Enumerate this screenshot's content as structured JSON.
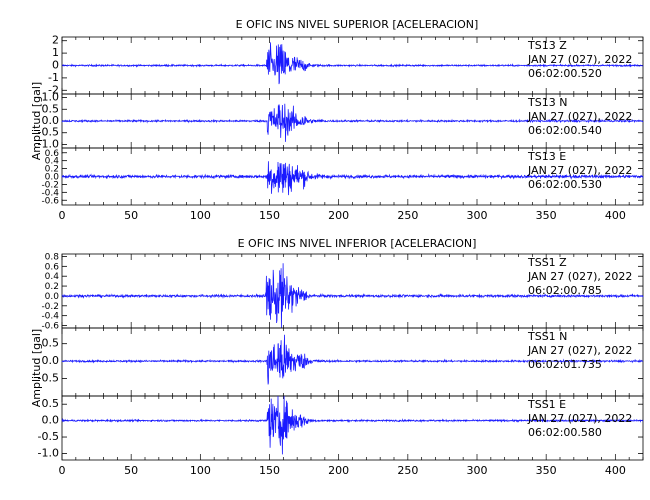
{
  "chart_data": [
    {
      "type": "line",
      "title": "E OFIC INS NIVEL SUPERIOR [ACELERACION]",
      "ylabel": "Amplitud [gal]",
      "xlabel": "",
      "xlim": [
        0,
        420
      ],
      "x_ticks": [
        "0",
        "50",
        "100",
        "150",
        "200",
        "250",
        "300",
        "350",
        "400"
      ],
      "series_color": "#1a1aff",
      "series": [
        {
          "station": "TS13",
          "component": "Z",
          "date": "JAN 27 (027), 2022",
          "time": "06:02:00.520",
          "ylim": [
            -2.3,
            2.3
          ],
          "y_ticks": [
            "2",
            "1",
            "0",
            "-1",
            "-2"
          ],
          "onset_s": 147,
          "peak": 2.1,
          "noise": 0.05,
          "decay_s": 14,
          "coda_s": 25
        },
        {
          "station": "TS13",
          "component": "N",
          "date": "JAN 27 (027), 2022",
          "time": "06:02:00.540",
          "ylim": [
            -1.15,
            1.15
          ],
          "y_ticks": [
            "1.0",
            "0.5",
            "0.0",
            "-0.5",
            "-1.0"
          ],
          "onset_s": 148,
          "peak": 0.95,
          "noise": 0.03,
          "decay_s": 16,
          "coda_s": 28
        },
        {
          "station": "TS13",
          "component": "E",
          "date": "JAN 27 (027), 2022",
          "time": "06:02:00.530",
          "ylim": [
            -0.72,
            0.72
          ],
          "y_ticks": [
            "0.6",
            "0.4",
            "0.2",
            "0.0",
            "-0.2",
            "-0.4",
            "-0.6"
          ],
          "onset_s": 148,
          "peak": 0.62,
          "noise": 0.03,
          "decay_s": 20,
          "coda_s": 32
        }
      ]
    },
    {
      "type": "line",
      "title": "E OFIC INS NIVEL INFERIOR [ACELERACION]",
      "ylabel": "Amplitud [gal]",
      "xlabel": "",
      "xlim": [
        0,
        420
      ],
      "x_ticks": [
        "0",
        "50",
        "100",
        "150",
        "200",
        "250",
        "300",
        "350",
        "400"
      ],
      "series_color": "#1a1aff",
      "series": [
        {
          "station": "TSS1",
          "component": "Z",
          "date": "JAN 27 (027), 2022",
          "time": "06:02:00.785",
          "ylim": [
            -0.65,
            0.85
          ],
          "y_ticks": [
            "0.8",
            "0.6",
            "0.4",
            "0.2",
            "0.0",
            "-0.2",
            "-0.4",
            "-0.6"
          ],
          "onset_s": 147,
          "peak": 0.78,
          "noise": 0.02,
          "decay_s": 12,
          "coda_s": 24
        },
        {
          "station": "TSS1",
          "component": "N",
          "date": "JAN 27 (027), 2022",
          "time": "06:02:01.735",
          "ylim": [
            -1.0,
            0.95
          ],
          "y_ticks": [
            "0.5",
            "0.0",
            "-0.5"
          ],
          "onset_s": 148,
          "peak": 0.9,
          "noise": 0.02,
          "decay_s": 14,
          "coda_s": 26
        },
        {
          "station": "TSS1",
          "component": "E",
          "date": "JAN 27 (027), 2022",
          "time": "06:02:00.580",
          "ylim": [
            -1.2,
            0.75
          ],
          "y_ticks": [
            "0.5",
            "0.0",
            "-0.5",
            "-1.0"
          ],
          "onset_s": 148,
          "peak": 0.95,
          "noise": 0.02,
          "decay_s": 12,
          "coda_s": 22
        }
      ]
    }
  ]
}
